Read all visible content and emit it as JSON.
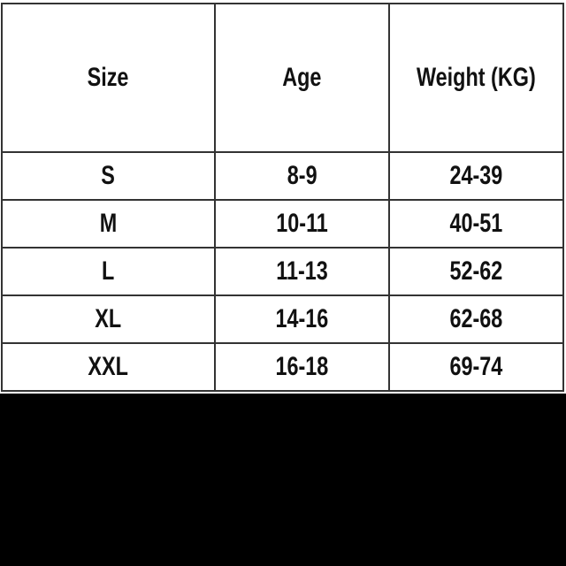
{
  "table": {
    "headers": [
      "Size",
      "Age",
      "Weight (KG)"
    ],
    "rows": [
      [
        "S",
        "8-9",
        "24-39"
      ],
      [
        "M",
        "10-11",
        "40-51"
      ],
      [
        "L",
        "11-13",
        "52-62"
      ],
      [
        "XL",
        "14-16",
        "62-68"
      ],
      [
        "XXL",
        "16-18",
        "69-74"
      ]
    ]
  }
}
